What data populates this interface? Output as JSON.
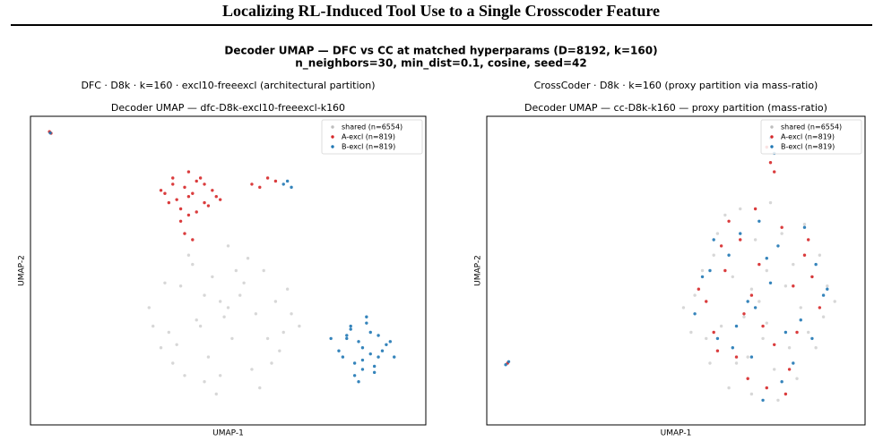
{
  "header": {
    "title": "Localizing RL-Induced Tool Use to a Single Crosscoder Feature"
  },
  "suptitle": [
    "Decoder UMAP — DFC vs CC at matched hyperparams (D=8192, k=160)",
    "n_neighbors=30, min_dist=0.1, cosine, seed=42"
  ],
  "chart_data": [
    {
      "type": "scatter",
      "caption": "DFC · D8k · k=160 · excl10-freeexcl  (architectural partition)",
      "title": "Decoder UMAP — dfc-D8k-excl10-freeexcl-k160",
      "xlabel": "UMAP-1",
      "ylabel": "UMAP-2",
      "xlim": [
        0,
        100
      ],
      "ylim": [
        0,
        100
      ],
      "legend": "upper right",
      "series": [
        {
          "name": "shared (n=6554)",
          "color": "#bdbdbd",
          "x": [
            49,
            35,
            62,
            41,
            56,
            30,
            68,
            45,
            52,
            38,
            60,
            44,
            33,
            65,
            50,
            57,
            42,
            47,
            54,
            36,
            63,
            48,
            40,
            58,
            31,
            66,
            51,
            44,
            55,
            39,
            46,
            61,
            53,
            37,
            59,
            43,
            50,
            34,
            64,
            48
          ],
          "y": [
            35,
            30,
            40,
            52,
            18,
            38,
            32,
            22,
            50,
            45,
            28,
            14,
            25,
            44,
            58,
            36,
            34,
            10,
            46,
            20,
            24,
            40,
            55,
            12,
            32,
            36,
            28,
            42,
            54,
            16,
            48,
            20,
            42,
            26,
            50,
            32,
            38,
            46,
            30,
            16
          ]
        },
        {
          "name": "A-excl (n=819)",
          "color": "#d62728",
          "x": [
            40,
            36,
            44,
            38,
            42,
            34,
            46,
            40,
            37,
            43,
            39,
            45,
            35,
            41,
            47,
            38,
            42,
            36,
            44,
            40,
            4.8,
            5.2,
            58,
            62,
            56,
            39,
            41,
            33,
            48,
            60
          ],
          "y": [
            74,
            78,
            72,
            70,
            79,
            75,
            76,
            68,
            73,
            80,
            77,
            71,
            72,
            75,
            74,
            66,
            69,
            80,
            78,
            82,
            95,
            94.5,
            77,
            79,
            78,
            62,
            60,
            76,
            73,
            80
          ]
        },
        {
          "name": "B-excl (n=819)",
          "color": "#1f77b4",
          "x": [
            84,
            80,
            88,
            82,
            86,
            78,
            90,
            84,
            81,
            87,
            83,
            89,
            79,
            85,
            91,
            82,
            86,
            80,
            88,
            84,
            5,
            65,
            66,
            64,
            76,
            92,
            83,
            85,
            87,
            81
          ],
          "y": [
            25,
            28,
            22,
            20,
            30,
            24,
            26,
            18,
            31,
            19,
            27,
            24,
            22,
            33,
            27,
            16,
            23,
            29,
            29,
            21,
            94.6,
            79,
            77,
            78,
            28,
            22,
            14,
            35,
            17,
            32
          ]
        }
      ]
    },
    {
      "type": "scatter",
      "caption": "CrossCoder · D8k · k=160  (proxy partition via mass-ratio)",
      "title": "Decoder UMAP — cc-D8k-k160 — proxy partition (mass-ratio)",
      "xlabel": "UMAP-1",
      "ylabel": "UMAP-2",
      "xlim": [
        0,
        100
      ],
      "ylim": [
        0,
        100
      ],
      "legend": "upper right",
      "series": [
        {
          "name": "shared (n=6554)",
          "color": "#bdbdbd",
          "x": [
            72,
            60,
            85,
            66,
            78,
            55,
            90,
            70,
            63,
            82,
            74,
            58,
            88,
            68,
            80,
            52,
            92,
            75,
            65,
            77,
            71,
            62,
            84,
            57,
            89,
            69,
            79,
            54,
            86,
            73,
            64,
            81,
            76,
            61,
            87,
            67,
            83,
            59,
            74,
            70
          ],
          "y": [
            40,
            55,
            30,
            20,
            62,
            42,
            45,
            10,
            68,
            15,
            50,
            28,
            55,
            35,
            25,
            38,
            40,
            72,
            48,
            8,
            60,
            32,
            65,
            50,
            35,
            22,
            45,
            30,
            48,
            28,
            12,
            52,
            18,
            62,
            25,
            70,
            38,
            20,
            33,
            44
          ]
        },
        {
          "name": "A-excl (n=819)",
          "color": "#d62728",
          "x": [
            70,
            62,
            82,
            66,
            78,
            58,
            86,
            74,
            64,
            80,
            72,
            60,
            84,
            68,
            76,
            56,
            88,
            71,
            63,
            79,
            75,
            74,
            76,
            5.5,
            67,
            81,
            69,
            73,
            61,
            85
          ],
          "y": [
            42,
            58,
            30,
            22,
            64,
            40,
            48,
            12,
            66,
            18,
            52,
            30,
            55,
            36,
            26,
            44,
            38,
            70,
            50,
            10,
            85,
            90,
            82,
            20,
            60,
            45,
            15,
            32,
            24,
            60
          ]
        },
        {
          "name": "B-excl (n=819)",
          "color": "#1f77b4",
          "x": [
            71,
            59,
            83,
            65,
            77,
            55,
            89,
            73,
            67,
            81,
            75,
            61,
            87,
            69,
            79,
            57,
            90,
            72,
            64,
            78,
            76,
            75,
            5.8,
            5,
            66,
            84,
            70,
            60,
            86,
            74
          ],
          "y": [
            38,
            50,
            34,
            25,
            58,
            36,
            42,
            8,
            62,
            20,
            46,
            28,
            52,
            40,
            30,
            48,
            44,
            66,
            55,
            14,
            88,
            93,
            20.5,
            19.5,
            32,
            64,
            22,
            60,
            28,
            54
          ]
        }
      ]
    }
  ]
}
